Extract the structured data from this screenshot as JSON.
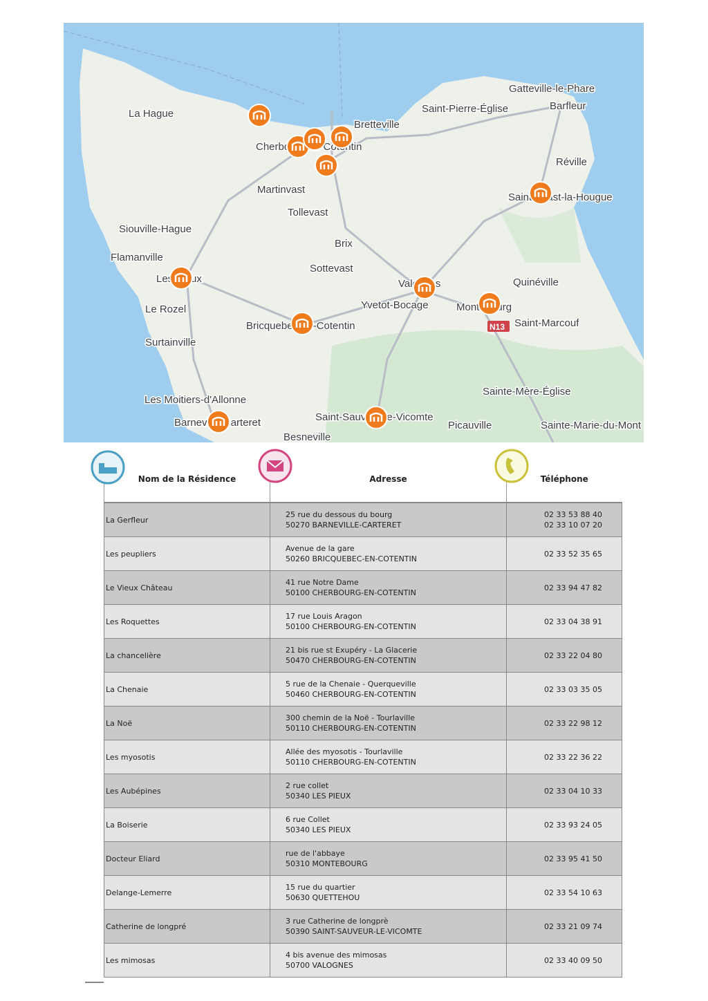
{
  "map": {
    "places": [
      "La Hague",
      "Cherbourg-en-Cotentin",
      "Bretteville",
      "Martinvast",
      "Tollevast",
      "Siouville-Hague",
      "Flamanville",
      "Les Pieux",
      "Le Rozel",
      "Surtainville",
      "Brix",
      "Sottevast",
      "Valognes",
      "Yvetot-Bocage",
      "Bricquebec-en-Cotentin",
      "Les Moitiers-d'Allonne",
      "Barneville-Carteret",
      "Besneville",
      "Saint-Sauveur-le-Vicomte",
      "Picauville",
      "Sainte-Mère-Église",
      "Sainte-Marie-du-Mont",
      "Montebourg",
      "Saint-Marcouf",
      "Quinéville",
      "Saint-Vaast-la-Hougue",
      "Réville",
      "Gatteville-le-Phare",
      "Barfleur",
      "Saint-Pierre-Église"
    ],
    "road": "N13"
  },
  "table": {
    "headers": [
      "Nom de la Résidence",
      "Adresse",
      "Téléphone"
    ],
    "rows": [
      {
        "name": "La Gerfleur",
        "address": [
          "25 rue du dessous du bourg",
          "50270 BARNEVILLE-CARTERET"
        ],
        "phone": [
          "02 33 53 88 40",
          "02 33 10 07 20"
        ]
      },
      {
        "name": "Les peupliers",
        "address": [
          "Avenue de la gare",
          "50260 BRICQUEBEC-EN-COTENTIN"
        ],
        "phone": [
          "02 33 52 35 65"
        ]
      },
      {
        "name": "Le Vieux Château",
        "address": [
          "41 rue Notre Dame",
          "50100 CHERBOURG-EN-COTENTIN"
        ],
        "phone": [
          "02 33 94 47 82"
        ]
      },
      {
        "name": "Les Roquettes",
        "address": [
          "17 rue Louis Aragon",
          "50100 CHERBOURG-EN-COTENTIN"
        ],
        "phone": [
          "02 33 04 38 91"
        ]
      },
      {
        "name": "La chancelière",
        "address": [
          "21 bis rue st Exupéry - La Glacerie",
          "50470 CHERBOURG-EN-COTENTIN"
        ],
        "phone": [
          "02 33 22 04 80"
        ]
      },
      {
        "name": "La Chenaie",
        "address": [
          "5 rue de la Chenaie - Querqueville",
          "50460 CHERBOURG-EN-COTENTIN"
        ],
        "phone": [
          "02 33 03 35 05"
        ]
      },
      {
        "name": "La Noë",
        "address": [
          "300 chemin de la Noë - Tourlaville",
          "50110 CHERBOURG-EN-COTENTIN"
        ],
        "phone": [
          "02 33 22 98 12"
        ]
      },
      {
        "name": "Les myosotis",
        "address": [
          "Allée des myosotis - Tourlaville",
          "50110 CHERBOURG-EN-COTENTIN"
        ],
        "phone": [
          "02 33 22 36 22"
        ]
      },
      {
        "name": "Les Aubépines",
        "address": [
          "2 rue collet",
          "50340 LES PIEUX"
        ],
        "phone": [
          "02 33 04 10 33"
        ]
      },
      {
        "name": "La Boiserie",
        "address": [
          "6 rue Collet",
          "50340 LES PIEUX"
        ],
        "phone": [
          "02 33 93 24 05"
        ]
      },
      {
        "name": "Docteur Eliard",
        "address": [
          "rue de l'abbaye",
          "50310 MONTEBOURG"
        ],
        "phone": [
          "02 33 95 41 50"
        ]
      },
      {
        "name": "Delange-Lemerre",
        "address": [
          "15 rue du quartier",
          "50630 QUETTEHOU"
        ],
        "phone": [
          "02 33 54 10 63"
        ]
      },
      {
        "name": "Catherine de longpré",
        "address": [
          "3 rue Catherine de longprè",
          "50390 SAINT-SAUVEUR-LE-VICOMTE"
        ],
        "phone": [
          "02 33 21 09 74"
        ]
      },
      {
        "name": "Les mimosas",
        "address": [
          "4 bis avenue des mimosas",
          "50700 VALOGNES"
        ],
        "phone": [
          "02 33 40 09 50"
        ]
      }
    ]
  }
}
